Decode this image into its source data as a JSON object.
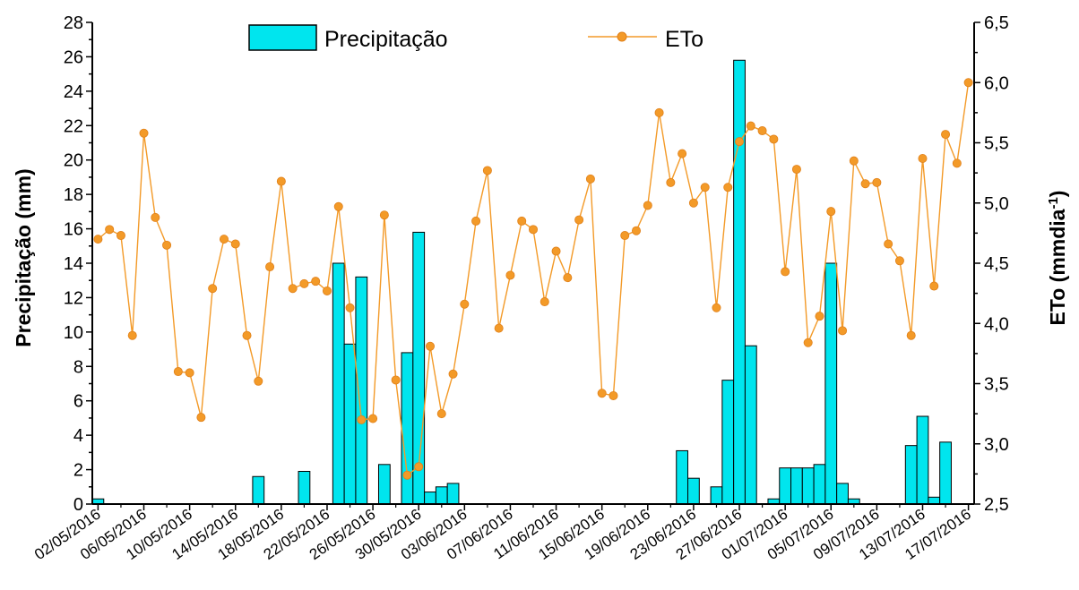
{
  "chart_data": {
    "type": "bar+line",
    "x_tick_labels": [
      "02/05/2016",
      "06/05/2016",
      "10/05/2016",
      "14/05/2016",
      "18/05/2016",
      "22/05/2016",
      "26/05/2016",
      "30/05/2016",
      "03/06/2016",
      "07/06/2016",
      "11/06/2016",
      "15/06/2016",
      "19/06/2016",
      "23/06/2016",
      "27/06/2016",
      "01/07/2016",
      "05/07/2016",
      "09/07/2016",
      "13/07/2016",
      "17/07/2016"
    ],
    "y_left": {
      "label": "Precipitação (mm)",
      "lim": [
        0,
        28
      ],
      "ticks": [
        "0",
        "2",
        "4",
        "6",
        "8",
        "10",
        "12",
        "14",
        "16",
        "18",
        "20",
        "22",
        "24",
        "26",
        "28"
      ]
    },
    "y_right": {
      "label": "ETo (mmdia",
      "label_sup": "-1",
      "label_close": ")",
      "lim": [
        2.5,
        6.5
      ],
      "ticks": [
        "2,5",
        "3,0",
        "3,5",
        "4,0",
        "4,5",
        "5,0",
        "5,5",
        "6,0",
        "6,5"
      ]
    },
    "legend": {
      "position": "top-center",
      "items": [
        "Precipitação",
        "ETo"
      ]
    },
    "series": [
      {
        "name": "Precipitação",
        "type": "bar",
        "color": "#00e5ee",
        "points": [
          {
            "date": "02/05/2016",
            "value": 0.3
          },
          {
            "date": "16/05/2016",
            "value": 1.6
          },
          {
            "date": "20/05/2016",
            "value": 1.9
          },
          {
            "date": "23/05/2016",
            "value": 14.0
          },
          {
            "date": "24/05/2016",
            "value": 9.3
          },
          {
            "date": "25/05/2016",
            "value": 13.2
          },
          {
            "date": "27/05/2016",
            "value": 2.3
          },
          {
            "date": "29/05/2016",
            "value": 8.8
          },
          {
            "date": "30/05/2016",
            "value": 15.8
          },
          {
            "date": "31/05/2016",
            "value": 0.7
          },
          {
            "date": "01/06/2016",
            "value": 1.0
          },
          {
            "date": "02/06/2016",
            "value": 1.2
          },
          {
            "date": "22/06/2016",
            "value": 3.1
          },
          {
            "date": "23/06/2016",
            "value": 1.5
          },
          {
            "date": "25/06/2016",
            "value": 1.0
          },
          {
            "date": "26/06/2016",
            "value": 7.2
          },
          {
            "date": "27/06/2016",
            "value": 25.8
          },
          {
            "date": "28/06/2016",
            "value": 9.2
          },
          {
            "date": "30/06/2016",
            "value": 0.3
          },
          {
            "date": "01/07/2016",
            "value": 2.1
          },
          {
            "date": "02/07/2016",
            "value": 2.1
          },
          {
            "date": "03/07/2016",
            "value": 2.1
          },
          {
            "date": "04/07/2016",
            "value": 2.3
          },
          {
            "date": "05/07/2016",
            "value": 14.0
          },
          {
            "date": "06/07/2016",
            "value": 1.2
          },
          {
            "date": "07/07/2016",
            "value": 0.3
          },
          {
            "date": "12/07/2016",
            "value": 3.4
          },
          {
            "date": "13/07/2016",
            "value": 5.1
          },
          {
            "date": "14/07/2016",
            "value": 0.4
          },
          {
            "date": "15/07/2016",
            "value": 3.6
          }
        ]
      },
      {
        "name": "ETo",
        "type": "line",
        "color": "#f39a28",
        "start_date": "02/05/2016",
        "values": [
          4.7,
          4.78,
          4.73,
          3.9,
          5.58,
          4.88,
          4.65,
          3.6,
          3.59,
          3.22,
          4.29,
          4.7,
          4.66,
          3.9,
          3.52,
          4.47,
          5.18,
          4.29,
          4.33,
          4.35,
          4.27,
          4.97,
          4.13,
          3.2,
          3.21,
          4.9,
          3.53,
          2.74,
          2.81,
          3.81,
          3.25,
          3.58,
          4.16,
          4.85,
          5.27,
          3.96,
          4.4,
          4.85,
          4.78,
          4.18,
          4.6,
          4.38,
          4.86,
          5.2,
          3.42,
          3.4,
          4.73,
          4.77,
          4.98,
          5.75,
          5.17,
          5.41,
          5.0,
          5.13,
          4.13,
          5.13,
          5.51,
          5.64,
          5.6,
          5.53,
          4.43,
          5.28,
          3.84,
          4.06,
          4.93,
          3.94,
          5.35,
          5.16,
          5.17,
          4.66,
          4.52,
          3.9,
          5.37,
          4.31,
          5.57,
          5.33,
          6.0
        ]
      }
    ]
  }
}
